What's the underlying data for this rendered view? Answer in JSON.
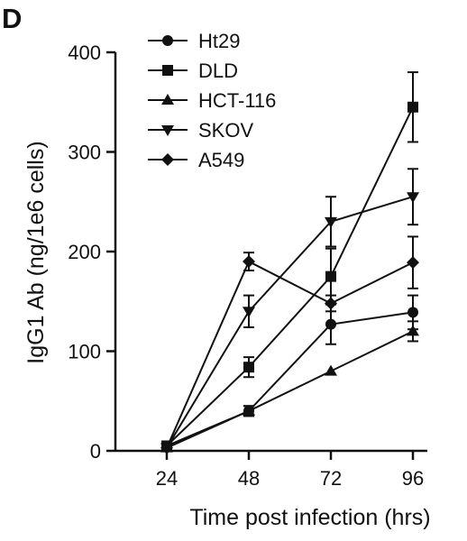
{
  "panel_label": "D",
  "chart_data": {
    "type": "line",
    "xlabel": "Time post infection (hrs)",
    "ylabel": "IgG1 Ab (ng/1e6 cells)",
    "categories": [
      "24",
      "48",
      "72",
      "96"
    ],
    "x": [
      24,
      48,
      72,
      96
    ],
    "ylim": [
      0,
      400
    ],
    "yticks": [
      0,
      100,
      200,
      300,
      400
    ],
    "grid": false,
    "legend_position": "top-left",
    "series": [
      {
        "name": "Ht29",
        "marker": "circle",
        "values": [
          5,
          40,
          127,
          139
        ],
        "errors": [
          0,
          5,
          20,
          17
        ]
      },
      {
        "name": "DLD",
        "marker": "square",
        "values": [
          5,
          84,
          175,
          345
        ],
        "errors": [
          0,
          10,
          28,
          35
        ]
      },
      {
        "name": "HCT-116",
        "marker": "triangle-up",
        "values": [
          3,
          40,
          80,
          120
        ],
        "errors": [
          0,
          5,
          0,
          10
        ]
      },
      {
        "name": "SKOV",
        "marker": "triangle-down",
        "values": [
          3,
          140,
          230,
          255
        ],
        "errors": [
          0,
          16,
          25,
          28
        ]
      },
      {
        "name": "A549",
        "marker": "diamond",
        "values": [
          3,
          190,
          148,
          189
        ],
        "errors": [
          0,
          9,
          8,
          26
        ]
      }
    ]
  }
}
